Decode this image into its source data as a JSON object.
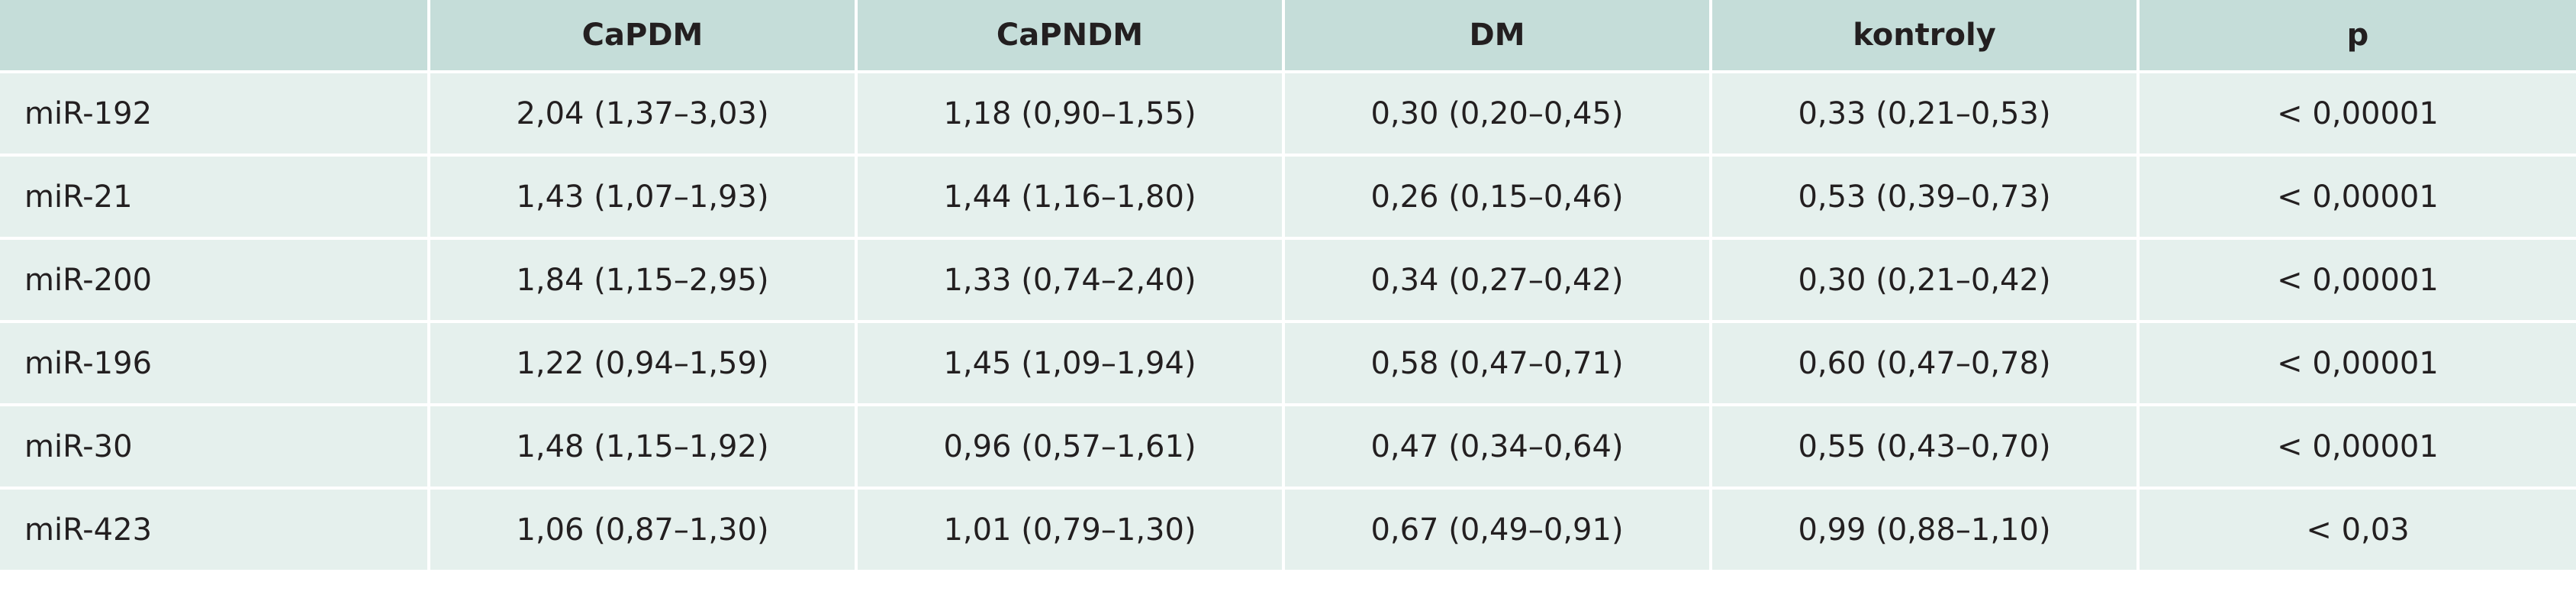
{
  "table": {
    "headers": [
      "",
      "CaPDM",
      "CaPNDM",
      "DM",
      "kontroly",
      "p"
    ],
    "rows": [
      [
        "miR-192",
        "2,04 (1,37–3,03)",
        "1,18 (0,90–1,55)",
        "0,30 (0,20–0,45)",
        "0,33 (0,21–0,53)",
        "< 0,00001"
      ],
      [
        "miR-21",
        "1,43 (1,07–1,93)",
        "1,44 (1,16–1,80)",
        "0,26 (0,15–0,46)",
        "0,53 (0,39–0,73)",
        "< 0,00001"
      ],
      [
        "miR-200",
        "1,84 (1,15–2,95)",
        "1,33 (0,74–2,40)",
        "0,34 (0,27–0,42)",
        "0,30 (0,21–0,42)",
        "< 0,00001"
      ],
      [
        "miR-196",
        "1,22 (0,94–1,59)",
        "1,45 (1,09–1,94)",
        "0,58 (0,47–0,71)",
        "0,60 (0,47–0,78)",
        "< 0,00001"
      ],
      [
        "miR-30",
        "1,48 (1,15–1,92)",
        "0,96 (0,57–1,61)",
        "0,47 (0,34–0,64)",
        "0,55 (0,43–0,70)",
        "< 0,00001"
      ],
      [
        "miR-423",
        "1,06 (0,87–1,30)",
        "1,01 (0,79–1,30)",
        "0,67 (0,49–0,91)",
        "0,99 (0,88–1,10)",
        "< 0,03"
      ]
    ]
  },
  "colors": {
    "header_background": "#c5ddd9",
    "row_background": "#e5f0ed",
    "cell_divider": "#ffffff",
    "text": "#231f20"
  }
}
